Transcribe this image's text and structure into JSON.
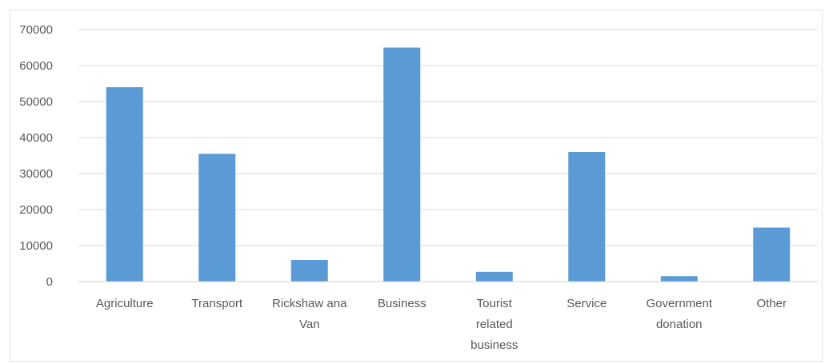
{
  "chart_data": {
    "type": "bar",
    "categories": [
      [
        "Agriculture"
      ],
      [
        "Transport"
      ],
      [
        "Rickshaw ana",
        "Van"
      ],
      [
        "Business"
      ],
      [
        "Tourist",
        "related",
        "business"
      ],
      [
        "Service"
      ],
      [
        "Government",
        "donation"
      ],
      [
        "Other"
      ]
    ],
    "values": [
      54000,
      35500,
      6000,
      65000,
      2700,
      36000,
      1500,
      15000
    ],
    "ylim": [
      0,
      70000
    ],
    "yticks": [
      0,
      10000,
      20000,
      30000,
      40000,
      50000,
      60000,
      70000
    ],
    "grid": true,
    "legend": "none",
    "bar_color": "#5b9bd5",
    "grid_color": "#d9d9d9",
    "axis_color": "#d0d0d0"
  }
}
